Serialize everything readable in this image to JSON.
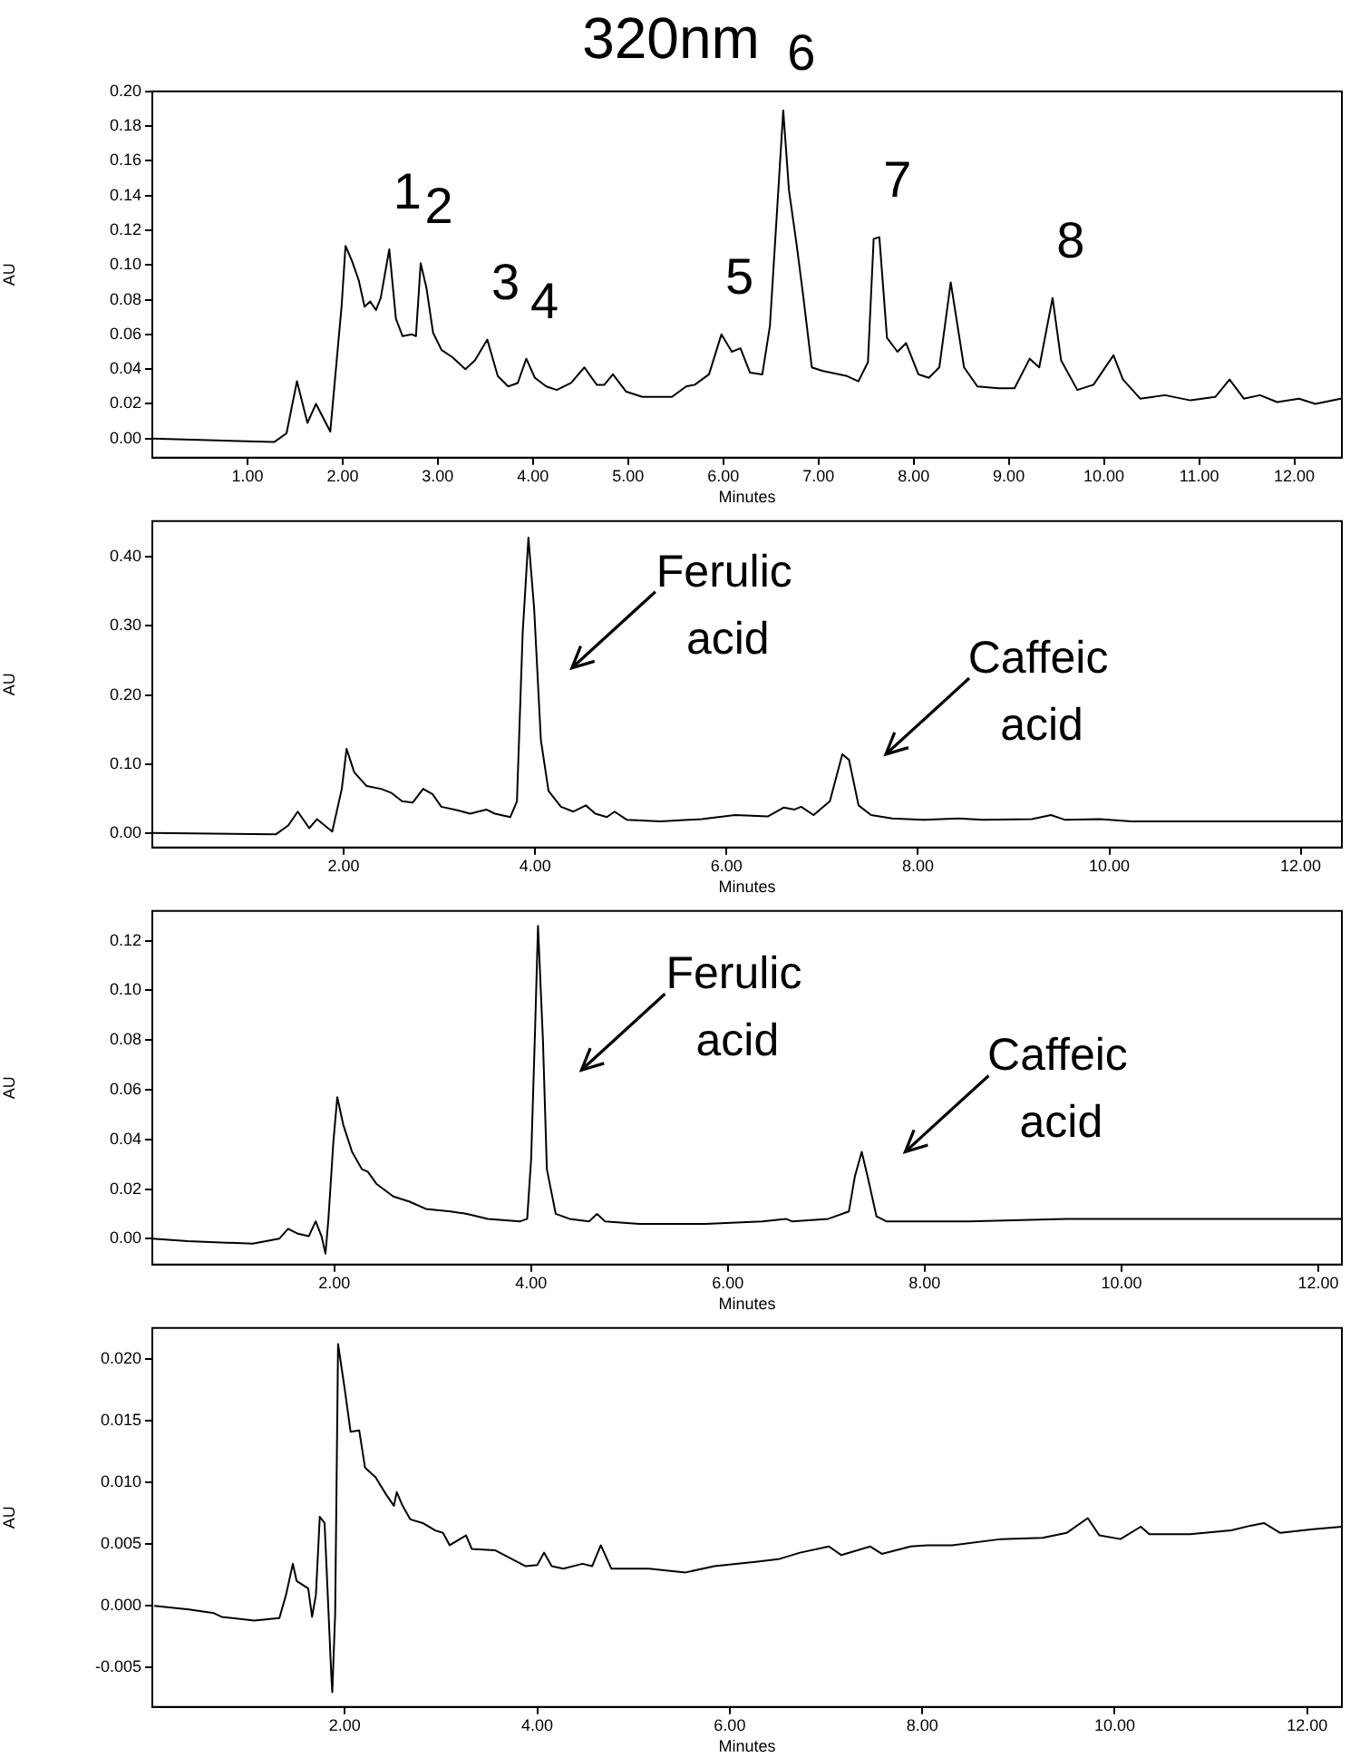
{
  "chart_data": [
    {
      "type": "line",
      "title": "320nm",
      "xlabel": "Minutes",
      "ylabel": "AU",
      "color": "#000000",
      "xlim": [
        0,
        12.5
      ],
      "ylim": [
        -0.011,
        0.2
      ],
      "xticks": [
        {
          "value": 1,
          "label": "1.00"
        },
        {
          "value": 2,
          "label": "2.00"
        },
        {
          "value": 3,
          "label": "3.00"
        },
        {
          "value": 4,
          "label": "4.00"
        },
        {
          "value": 5,
          "label": "5.00"
        },
        {
          "value": 6,
          "label": "6.00"
        },
        {
          "value": 7,
          "label": "7.00"
        },
        {
          "value": 8,
          "label": "8.00"
        },
        {
          "value": 9,
          "label": "9.00"
        },
        {
          "value": 10,
          "label": "10.00"
        },
        {
          "value": 11,
          "label": "11.00"
        },
        {
          "value": 12,
          "label": "12.00"
        }
      ],
      "yticks": [
        {
          "value": 0,
          "label": "0.00"
        },
        {
          "value": 0.02,
          "label": "0.02"
        },
        {
          "value": 0.04,
          "label": "0.04"
        },
        {
          "value": 0.06,
          "label": "0.06"
        },
        {
          "value": 0.08,
          "label": "0.08"
        },
        {
          "value": 0.1,
          "label": "0.10"
        },
        {
          "value": 0.12,
          "label": "0.12"
        },
        {
          "value": 0.14,
          "label": "0.14"
        },
        {
          "value": 0.16,
          "label": "0.16"
        },
        {
          "value": 0.18,
          "label": "0.18"
        },
        {
          "value": 0.2,
          "label": "0.20"
        }
      ],
      "x": [
        0,
        1.28,
        1.41,
        1.52,
        1.63,
        1.72,
        1.87,
        1.99,
        2.03,
        2.1,
        2.17,
        2.23,
        2.29,
        2.35,
        2.4,
        2.49,
        2.56,
        2.63,
        2.73,
        2.77,
        2.82,
        2.88,
        2.95,
        3.04,
        3.15,
        3.29,
        3.39,
        3.52,
        3.63,
        3.74,
        3.84,
        3.93,
        4.02,
        4.14,
        4.25,
        4.4,
        4.54,
        4.67,
        4.75,
        4.84,
        4.98,
        5.15,
        5.46,
        5.61,
        5.7,
        5.85,
        5.98,
        6.09,
        6.18,
        6.28,
        6.41,
        6.49,
        6.56,
        6.63,
        6.69,
        6.77,
        6.84,
        6.93,
        7.04,
        7.13,
        7.3,
        7.42,
        7.52,
        7.58,
        7.64,
        7.72,
        7.83,
        7.92,
        8.05,
        8.16,
        8.27,
        8.39,
        8.53,
        8.67,
        8.89,
        9.06,
        9.22,
        9.32,
        9.46,
        9.55,
        9.72,
        9.89,
        10.1,
        10.2,
        10.38,
        10.64,
        10.91,
        11.17,
        11.32,
        11.47,
        11.64,
        11.82,
        12.05,
        12.22,
        12.49
      ],
      "values": [
        0,
        -0.002,
        0.003,
        0.033,
        0.009,
        0.02,
        0.004,
        0.077,
        0.111,
        0.102,
        0.091,
        0.076,
        0.079,
        0.074,
        0.081,
        0.109,
        0.069,
        0.059,
        0.06,
        0.059,
        0.101,
        0.087,
        0.061,
        0.051,
        0.047,
        0.04,
        0.045,
        0.057,
        0.036,
        0.03,
        0.032,
        0.046,
        0.035,
        0.03,
        0.028,
        0.032,
        0.041,
        0.031,
        0.031,
        0.037,
        0.027,
        0.024,
        0.024,
        0.03,
        0.031,
        0.037,
        0.06,
        0.05,
        0.052,
        0.038,
        0.037,
        0.065,
        0.127,
        0.189,
        0.143,
        0.112,
        0.082,
        0.041,
        0.039,
        0.038,
        0.036,
        0.033,
        0.044,
        0.115,
        0.116,
        0.058,
        0.05,
        0.055,
        0.037,
        0.035,
        0.041,
        0.09,
        0.041,
        0.03,
        0.029,
        0.029,
        0.046,
        0.041,
        0.081,
        0.045,
        0.028,
        0.031,
        0.048,
        0.034,
        0.023,
        0.025,
        0.022,
        0.024,
        0.034,
        0.023,
        0.025,
        0.021,
        0.023,
        0.02,
        0.023
      ],
      "annotations": [
        {
          "text": "1",
          "x": 2.49,
          "y": 0.109
        },
        {
          "text": "2",
          "x": 2.82,
          "y": 0.101
        },
        {
          "text": "3",
          "x": 3.52,
          "y": 0.057
        },
        {
          "text": "4",
          "x": 3.93,
          "y": 0.046
        },
        {
          "text": "5",
          "x": 5.98,
          "y": 0.06
        },
        {
          "text": "6",
          "x": 6.63,
          "y": 0.189
        },
        {
          "text": "7",
          "x": 7.64,
          "y": 0.116
        },
        {
          "text": "8",
          "x": 9.46,
          "y": 0.081
        }
      ]
    },
    {
      "type": "line",
      "xlabel": "Minutes",
      "ylabel": "AU",
      "color": "#000000",
      "xlim": [
        0,
        12.43
      ],
      "ylim": [
        -0.021,
        0.452
      ],
      "xticks": [
        {
          "value": 2,
          "label": "2.00"
        },
        {
          "value": 4,
          "label": "4.00"
        },
        {
          "value": 6,
          "label": "6.00"
        },
        {
          "value": 8,
          "label": "8.00"
        },
        {
          "value": 10,
          "label": "10.00"
        },
        {
          "value": 12,
          "label": "12.00"
        }
      ],
      "yticks": [
        {
          "value": 0,
          "label": "0.00"
        },
        {
          "value": 0.1,
          "label": "0.10"
        },
        {
          "value": 0.2,
          "label": "0.20"
        },
        {
          "value": 0.3,
          "label": "0.30"
        },
        {
          "value": 0.4,
          "label": "0.40"
        }
      ],
      "x": [
        0,
        1.29,
        1.42,
        1.52,
        1.64,
        1.72,
        1.88,
        1.98,
        2.03,
        2.11,
        2.24,
        2.39,
        2.5,
        2.61,
        2.72,
        2.83,
        2.93,
        3.02,
        3.19,
        3.32,
        3.49,
        3.58,
        3.74,
        3.81,
        3.87,
        3.93,
        3.99,
        4.06,
        4.14,
        4.27,
        4.4,
        4.53,
        4.63,
        4.75,
        4.83,
        4.96,
        5.31,
        5.74,
        6.09,
        6.43,
        6.6,
        6.71,
        6.78,
        6.91,
        7.08,
        7.21,
        7.28,
        7.38,
        7.51,
        7.73,
        8.07,
        8.42,
        8.68,
        9.19,
        9.39,
        9.54,
        9.9,
        10.23,
        11.09,
        12.43
      ],
      "values": [
        0,
        -0.002,
        0.011,
        0.031,
        0.007,
        0.02,
        0.002,
        0.064,
        0.122,
        0.088,
        0.068,
        0.064,
        0.058,
        0.046,
        0.044,
        0.064,
        0.056,
        0.038,
        0.033,
        0.028,
        0.034,
        0.028,
        0.023,
        0.046,
        0.29,
        0.428,
        0.325,
        0.135,
        0.061,
        0.038,
        0.031,
        0.04,
        0.028,
        0.023,
        0.031,
        0.019,
        0.017,
        0.02,
        0.026,
        0.024,
        0.037,
        0.034,
        0.038,
        0.026,
        0.046,
        0.114,
        0.106,
        0.04,
        0.026,
        0.021,
        0.019,
        0.021,
        0.019,
        0.02,
        0.026,
        0.019,
        0.02,
        0.017,
        0.017,
        0.017
      ],
      "annotations": [
        {
          "text": "Ferulic acid",
          "x": 3.93,
          "y": 0.428
        },
        {
          "text": "Caffeic acid",
          "x": 7.21,
          "y": 0.114
        }
      ]
    },
    {
      "type": "line",
      "xlabel": "Minutes",
      "ylabel": "AU",
      "color": "#000000",
      "xlim": [
        0.15,
        12.24
      ],
      "ylim": [
        -0.0104,
        0.132
      ],
      "xticks": [
        {
          "value": 2,
          "label": "2.00"
        },
        {
          "value": 4,
          "label": "4.00"
        },
        {
          "value": 6,
          "label": "6.00"
        },
        {
          "value": 8,
          "label": "8.00"
        },
        {
          "value": 10,
          "label": "10.00"
        },
        {
          "value": 12,
          "label": "12.00"
        }
      ],
      "yticks": [
        {
          "value": 0,
          "label": "0.00"
        },
        {
          "value": 0.02,
          "label": "0.02"
        },
        {
          "value": 0.04,
          "label": "0.04"
        },
        {
          "value": 0.06,
          "label": "0.06"
        },
        {
          "value": 0.08,
          "label": "0.08"
        },
        {
          "value": 0.1,
          "label": "0.10"
        },
        {
          "value": 0.12,
          "label": "0.12"
        }
      ],
      "x": [
        0.15,
        0.51,
        1.17,
        1.44,
        1.53,
        1.63,
        1.74,
        1.81,
        1.87,
        1.91,
        1.94,
        1.99,
        2.03,
        2.09,
        2.18,
        2.28,
        2.34,
        2.43,
        2.6,
        2.76,
        2.93,
        3.18,
        3.35,
        3.56,
        3.89,
        3.96,
        4.0,
        4.04,
        4.07,
        4.12,
        4.16,
        4.25,
        4.39,
        4.59,
        4.67,
        4.75,
        5.1,
        5.77,
        6.35,
        6.59,
        6.65,
        7.02,
        7.23,
        7.29,
        7.36,
        7.42,
        7.51,
        7.61,
        8.44,
        9.44,
        10.28,
        11.28,
        12.24
      ],
      "values": [
        0,
        -0.001,
        -0.002,
        0,
        0.004,
        0.002,
        0.001,
        0.007,
        0.001,
        -0.006,
        0.008,
        0.039,
        0.057,
        0.046,
        0.035,
        0.028,
        0.027,
        0.022,
        0.017,
        0.015,
        0.012,
        0.011,
        0.01,
        0.008,
        0.007,
        0.008,
        0.032,
        0.084,
        0.126,
        0.08,
        0.028,
        0.01,
        0.008,
        0.007,
        0.01,
        0.007,
        0.006,
        0.006,
        0.007,
        0.008,
        0.007,
        0.008,
        0.011,
        0.025,
        0.035,
        0.025,
        0.009,
        0.007,
        0.007,
        0.008,
        0.008,
        0.008,
        0.008
      ],
      "annotations": [
        {
          "text": "Ferulic acid",
          "x": 4.07,
          "y": 0.126
        },
        {
          "text": "Caffeic acid",
          "x": 7.36,
          "y": 0.035
        }
      ]
    },
    {
      "type": "line",
      "xlabel": "Minutes",
      "ylabel": "AU",
      "color": "#000000",
      "xlim": [
        0,
        12.36
      ],
      "ylim": [
        -0.0082,
        0.0225
      ],
      "xticks": [
        {
          "value": 2,
          "label": "2.00"
        },
        {
          "value": 4,
          "label": "4.00"
        },
        {
          "value": 6,
          "label": "6.00"
        },
        {
          "value": 8,
          "label": "8.00"
        },
        {
          "value": 10,
          "label": "10.00"
        },
        {
          "value": 12,
          "label": "12.00"
        }
      ],
      "yticks": [
        {
          "value": -0.005,
          "label": "-0.005"
        },
        {
          "value": 0,
          "label": "0.000"
        },
        {
          "value": 0.005,
          "label": "0.005"
        },
        {
          "value": 0.01,
          "label": "0.010"
        },
        {
          "value": 0.015,
          "label": "0.015"
        },
        {
          "value": 0.02,
          "label": "0.020"
        }
      ],
      "x": [
        0.02,
        0.38,
        0.64,
        0.72,
        1.06,
        1.32,
        1.39,
        1.46,
        1.5,
        1.62,
        1.66,
        1.7,
        1.74,
        1.79,
        1.86,
        1.87,
        1.9,
        1.93,
        2.0,
        2.06,
        2.15,
        2.21,
        2.32,
        2.43,
        2.51,
        2.54,
        2.6,
        2.68,
        2.81,
        2.94,
        3.02,
        3.09,
        3.26,
        3.32,
        3.56,
        3.88,
        4.0,
        4.07,
        4.15,
        4.27,
        4.47,
        4.57,
        4.66,
        4.77,
        5.16,
        5.54,
        5.84,
        6.31,
        6.52,
        6.73,
        7.03,
        7.16,
        7.46,
        7.58,
        7.88,
        8.05,
        8.31,
        8.82,
        9.25,
        9.5,
        9.72,
        9.84,
        10.06,
        10.27,
        10.36,
        10.78,
        11.21,
        11.42,
        11.55,
        11.72,
        12.06,
        12.36
      ],
      "values": [
        0,
        -0.0003,
        -0.0006,
        -0.0009,
        -0.0012,
        -0.001,
        0.0009,
        0.0034,
        0.002,
        0.0014,
        -0.0009,
        0.0009,
        0.0072,
        0.0067,
        -0.0057,
        -0.007,
        -0.0006,
        0.0212,
        0.0175,
        0.0141,
        0.0142,
        0.0112,
        0.0104,
        0.009,
        0.0081,
        0.0092,
        0.0081,
        0.007,
        0.0067,
        0.0061,
        0.0059,
        0.0049,
        0.0057,
        0.0046,
        0.0045,
        0.0032,
        0.0033,
        0.0043,
        0.0032,
        0.003,
        0.0034,
        0.0032,
        0.0049,
        0.003,
        0.003,
        0.0027,
        0.0032,
        0.0036,
        0.0038,
        0.0043,
        0.0048,
        0.0041,
        0.0048,
        0.0042,
        0.0048,
        0.0049,
        0.0049,
        0.0054,
        0.0055,
        0.0059,
        0.0071,
        0.0057,
        0.0054,
        0.0064,
        0.0058,
        0.0058,
        0.0061,
        0.0065,
        0.0067,
        0.0059,
        0.0062,
        0.0064
      ]
    }
  ]
}
